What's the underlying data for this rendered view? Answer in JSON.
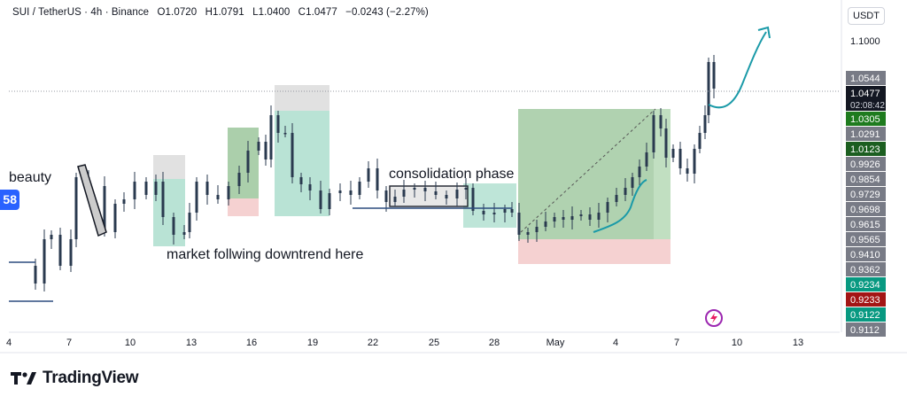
{
  "header": {
    "symbol": "SUI / TetherUS · 4h · Binance",
    "open": "O1.0720",
    "high": "H1.0791",
    "low": "L1.0400",
    "close": "C1.0477",
    "change": "−0.0243 (−2.27%)"
  },
  "currency": "USDT",
  "brand": "TradingView",
  "badge_text": "58",
  "annotations": {
    "beauty": "beauty",
    "downtrend": "market follwing downtrend here",
    "consolidation": "consolidation phase"
  },
  "chart_data": {
    "type": "candlestick",
    "x_ticks": [
      "4",
      "7",
      "10",
      "13",
      "16",
      "19",
      "22",
      "25",
      "28",
      "May",
      "4",
      "7",
      "10",
      "13"
    ],
    "price_labels": [
      {
        "value": "1.1000",
        "style": "plain"
      },
      {
        "value": "1.0544",
        "style": "gray"
      },
      {
        "value": "1.0477",
        "style": "black",
        "countdown": "02:08:42"
      },
      {
        "value": "1.0305",
        "style": "green"
      },
      {
        "value": "1.0291",
        "style": "gray"
      },
      {
        "value": "1.0123",
        "style": "darkgreen"
      },
      {
        "value": "0.9926",
        "style": "gray"
      },
      {
        "value": "0.9854",
        "style": "gray"
      },
      {
        "value": "0.9729",
        "style": "gray"
      },
      {
        "value": "0.9698",
        "style": "gray"
      },
      {
        "value": "0.9615",
        "style": "gray"
      },
      {
        "value": "0.9565",
        "style": "gray"
      },
      {
        "value": "0.9410",
        "style": "gray"
      },
      {
        "value": "0.9362",
        "style": "gray"
      },
      {
        "value": "0.9234",
        "style": "teal"
      },
      {
        "value": "0.9233",
        "style": "red"
      },
      {
        "value": "0.9122",
        "style": "teal"
      },
      {
        "value": "0.9112",
        "style": "gray"
      }
    ],
    "last_price": 1.0477,
    "colors": {
      "candle": "#2a3a4f",
      "zone_teal": "#a8dccb",
      "zone_green": "#8fbf8f",
      "zone_red": "#f3c6c6",
      "zone_gray": "#d9d9d9",
      "line_blue": "#2b4c7e",
      "arrow": "#1a9aa8"
    }
  }
}
